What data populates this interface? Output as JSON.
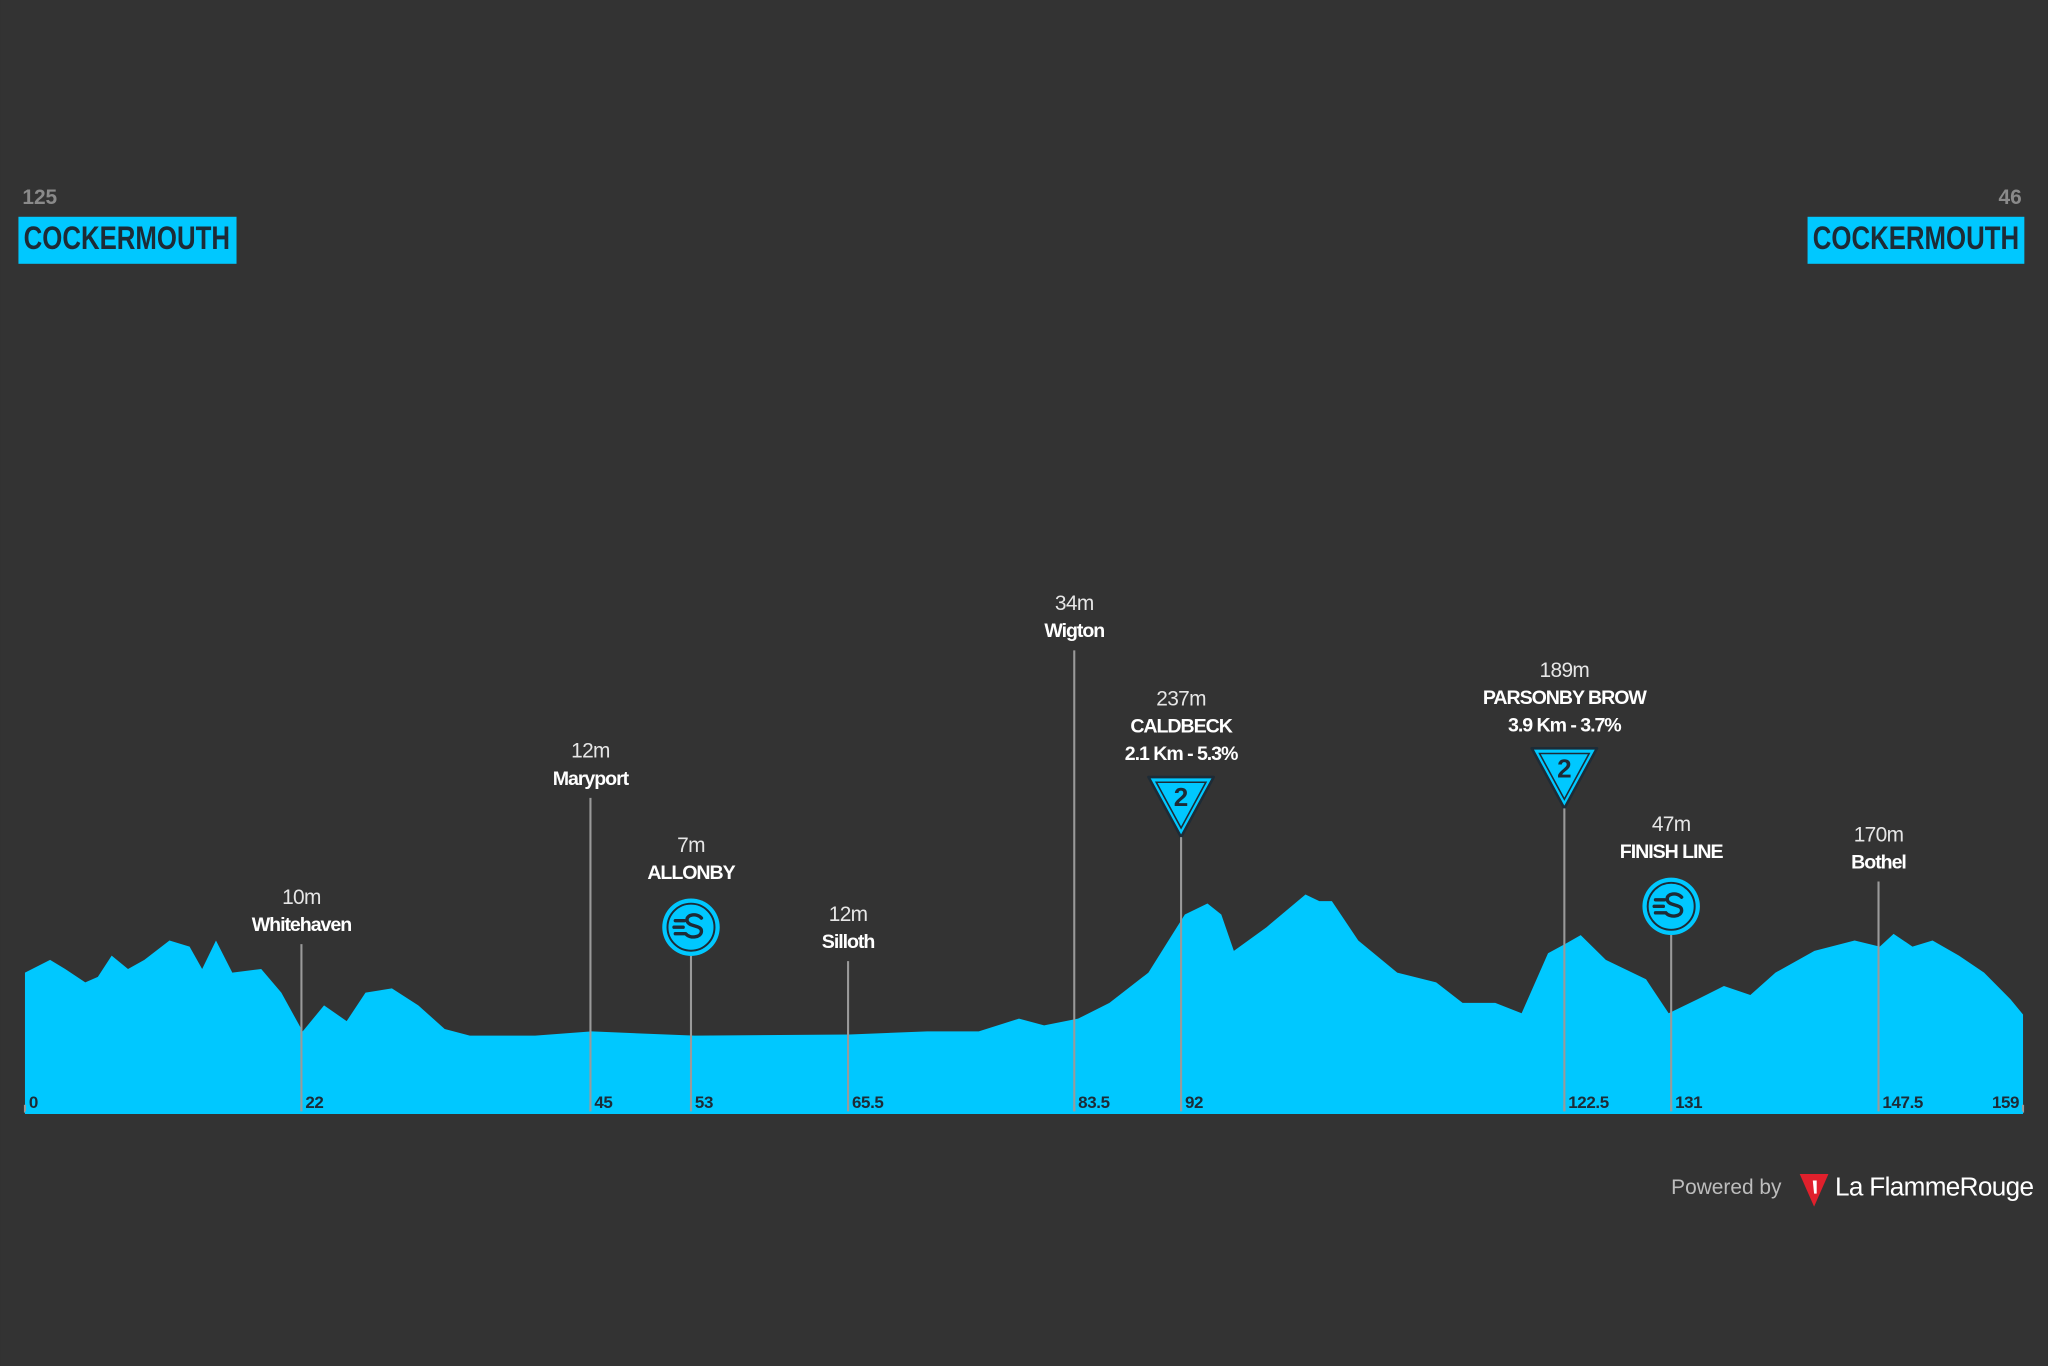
{
  "chart_data": {
    "type": "area",
    "color": "#00c8ff",
    "start": {
      "elevation": "125",
      "name": "COCKERMOUTH"
    },
    "finish": {
      "elevation": "46",
      "name": "COCKERMOUTH"
    },
    "x": [
      0,
      2,
      3.2,
      4.8,
      5.8,
      6.9,
      8.2,
      9.5,
      11.5,
      13.1,
      14.1,
      15.2,
      16.5,
      18.8,
      20.4,
      22.1,
      23.8,
      25.6,
      27.1,
      29.2,
      31.3,
      33.4,
      35.4,
      40.6,
      45.1,
      53.3,
      65.6,
      71.8,
      75.9,
      79.1,
      81.1,
      83.8,
      86.3,
      89.4,
      91,
      92.3,
      94.1,
      95.2,
      96.2,
      98.8,
      101.9,
      103,
      104,
      106.1,
      109.2,
      112.3,
      114.4,
      117,
      119.1,
      121.2,
      122.7,
      123.8,
      125.8,
      129,
      130.8,
      133.1,
      135.2,
      137.3,
      139.3,
      142.4,
      145.6,
      147.6,
      148.7,
      150.2,
      151.8,
      153.9,
      155.9,
      158,
      159
    ],
    "values": [
      119,
      140,
      125,
      103,
      112,
      147,
      125,
      140,
      172,
      162,
      125,
      172,
      119,
      125,
      86,
      22,
      65,
      39,
      86,
      93,
      65,
      26,
      15,
      15,
      22,
      15,
      17,
      22,
      22,
      43,
      32,
      43,
      69,
      119,
      172,
      215,
      233,
      215,
      155,
      194,
      248,
      237,
      237,
      172,
      119,
      103,
      69,
      69,
      52,
      151,
      168,
      181,
      140,
      108,
      52,
      75,
      97,
      82,
      119,
      155,
      172,
      162,
      183,
      162,
      172,
      147,
      119,
      75,
      50
    ],
    "xticks": [
      0,
      22,
      45,
      53,
      65.5,
      83.5,
      92,
      122.5,
      131,
      147.5,
      159
    ],
    "waypoints": [
      {
        "km": 22,
        "elevation": "10m",
        "name": "Whitehaven"
      },
      {
        "km": 45,
        "elevation": "12m",
        "name": "Maryport"
      },
      {
        "km": 53,
        "elevation": "7m",
        "name": "ALLONBY",
        "kind": "sprint"
      },
      {
        "km": 65.5,
        "elevation": "12m",
        "name": "Silloth"
      },
      {
        "km": 83.5,
        "elevation": "34m",
        "name": "Wigton"
      },
      {
        "km": 92,
        "elevation": "237m",
        "name": "CALDBECK",
        "detail": "2.1 Km - 5.3%",
        "kind": "kom",
        "category": "2"
      },
      {
        "km": 122.5,
        "elevation": "189m",
        "name": "PARSONBY BROW",
        "detail": "3.9 Km - 3.7%",
        "kind": "kom",
        "category": "2"
      },
      {
        "km": 131,
        "elevation": "47m",
        "name": "FINISH LINE",
        "kind": "sprint"
      },
      {
        "km": 147.5,
        "elevation": "170m",
        "name": "Bothel"
      }
    ],
    "footer": {
      "powered": "Powered by",
      "brand": "La FlammeRouge"
    }
  }
}
